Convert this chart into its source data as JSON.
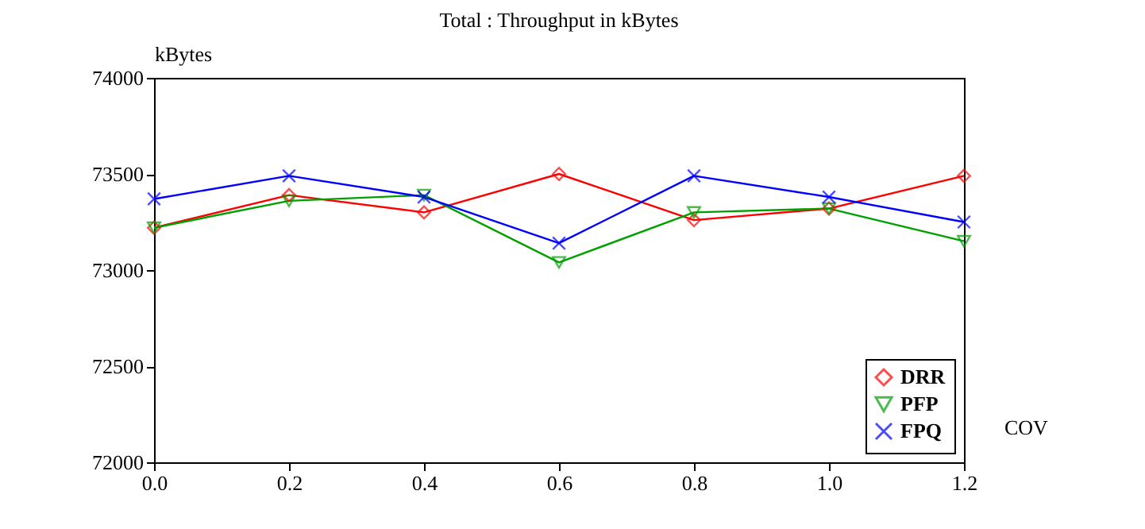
{
  "chart_data": {
    "type": "line",
    "title": "Total : Throughput in kBytes",
    "xlabel": "COV",
    "ylabel": "kBytes",
    "x": [
      0.0,
      0.2,
      0.4,
      0.6,
      0.8,
      1.0,
      1.2
    ],
    "series": [
      {
        "name": "DRR",
        "color": "#ff0000",
        "marker": "diamond",
        "values": [
          73220,
          73390,
          73300,
          73500,
          73260,
          73320,
          73490
        ]
      },
      {
        "name": "PFP",
        "color": "#00a000",
        "marker": "triangle",
        "values": [
          73220,
          73360,
          73390,
          73040,
          73300,
          73320,
          73150
        ]
      },
      {
        "name": "FPQ",
        "color": "#0000ff",
        "marker": "cross",
        "values": [
          73370,
          73490,
          73380,
          73140,
          73490,
          73380,
          73250
        ]
      }
    ],
    "xlim": [
      0.0,
      1.2
    ],
    "xticks": [
      {
        "value": 0,
        "label": "0.0"
      },
      0.2,
      0.4,
      0.6,
      0.8,
      {
        "value": 1,
        "label": "1.0"
      },
      1.2
    ],
    "ylim": [
      72000,
      74000
    ],
    "yticks": [
      72000,
      72500,
      73000,
      73500,
      74000
    ],
    "legend": "bottom right",
    "grid": false,
    "line_style": "solid"
  }
}
